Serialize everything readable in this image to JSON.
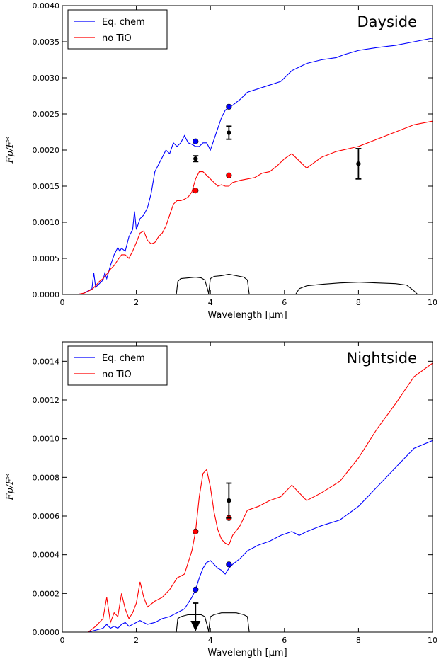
{
  "colors": {
    "eq_chem": "#0000ff",
    "no_tio": "#ff0000",
    "data": "#000000"
  },
  "chart_data": [
    {
      "type": "line",
      "title": "Dayside",
      "xlabel": "Wavelength [μm]",
      "ylabel": "Fp/F*",
      "xlim": [
        0,
        10
      ],
      "ylim": [
        0,
        0.004
      ],
      "xticks": [
        "0",
        "2",
        "4",
        "6",
        "8",
        "10"
      ],
      "xtick_values": [
        0,
        2,
        4,
        6,
        8,
        10
      ],
      "yticks": [
        "0.0000",
        "0.0005",
        "0.0010",
        "0.0015",
        "0.0020",
        "0.0025",
        "0.0030",
        "0.0035",
        "0.0040"
      ],
      "ytick_values": [
        0,
        0.0005,
        0.001,
        0.0015,
        0.002,
        0.0025,
        0.003,
        0.0035,
        0.004
      ],
      "legend_position": "top-left",
      "series": [
        {
          "name": "Eq. chem",
          "color": "#0000ff",
          "x": [
            0.35,
            0.55,
            0.7,
            0.8,
            0.85,
            0.9,
            1.0,
            1.1,
            1.15,
            1.2,
            1.3,
            1.4,
            1.5,
            1.55,
            1.6,
            1.7,
            1.8,
            1.9,
            1.95,
            2.0,
            2.1,
            2.2,
            2.3,
            2.4,
            2.5,
            2.6,
            2.7,
            2.8,
            2.9,
            3.0,
            3.1,
            3.2,
            3.3,
            3.4,
            3.5,
            3.6,
            3.7,
            3.8,
            3.9,
            4.0,
            4.1,
            4.2,
            4.3,
            4.4,
            4.5,
            4.6,
            4.8,
            5.0,
            5.3,
            5.6,
            5.9,
            6.2,
            6.4,
            6.6,
            7.0,
            7.4,
            7.6,
            8.0,
            8.5,
            9.0,
            9.5,
            10.0
          ],
          "y": [
            0.0,
            1e-05,
            5e-05,
            8e-05,
            0.0003,
            0.0001,
            0.00015,
            0.0002,
            0.0003,
            0.00022,
            0.0004,
            0.00055,
            0.00065,
            0.0006,
            0.00064,
            0.0006,
            0.0008,
            0.0009,
            0.00115,
            0.0009,
            0.00105,
            0.0011,
            0.0012,
            0.0014,
            0.0017,
            0.0018,
            0.0019,
            0.002,
            0.00195,
            0.0021,
            0.00205,
            0.0021,
            0.0022,
            0.0021,
            0.00208,
            0.00205,
            0.00205,
            0.0021,
            0.0021,
            0.002,
            0.00215,
            0.0023,
            0.00245,
            0.00255,
            0.0026,
            0.00262,
            0.0027,
            0.0028,
            0.00285,
            0.0029,
            0.00295,
            0.0031,
            0.00315,
            0.0032,
            0.00325,
            0.00328,
            0.00332,
            0.00338,
            0.00342,
            0.00345,
            0.0035,
            0.00355
          ]
        },
        {
          "name": "no TiO",
          "color": "#ff0000",
          "x": [
            0.4,
            0.6,
            0.8,
            0.9,
            1.0,
            1.1,
            1.2,
            1.3,
            1.4,
            1.5,
            1.6,
            1.7,
            1.8,
            1.9,
            2.0,
            2.1,
            2.2,
            2.3,
            2.4,
            2.5,
            2.6,
            2.7,
            2.8,
            2.9,
            3.0,
            3.1,
            3.2,
            3.3,
            3.4,
            3.5,
            3.6,
            3.7,
            3.8,
            3.9,
            4.0,
            4.1,
            4.2,
            4.3,
            4.4,
            4.5,
            4.6,
            4.8,
            5.0,
            5.2,
            5.4,
            5.6,
            5.8,
            6.0,
            6.2,
            6.4,
            6.6,
            7.0,
            7.4,
            8.0,
            8.5,
            9.0,
            9.5,
            10.0
          ],
          "y": [
            0.0,
            2e-05,
            7e-05,
            0.00012,
            0.00018,
            0.00022,
            0.00028,
            0.00035,
            0.0004,
            0.00048,
            0.00055,
            0.00055,
            0.0005,
            0.0006,
            0.00072,
            0.00085,
            0.00088,
            0.00075,
            0.0007,
            0.00072,
            0.0008,
            0.00085,
            0.00095,
            0.0011,
            0.00125,
            0.0013,
            0.0013,
            0.00132,
            0.00135,
            0.00142,
            0.0016,
            0.0017,
            0.0017,
            0.00165,
            0.0016,
            0.00155,
            0.0015,
            0.00152,
            0.0015,
            0.0015,
            0.00155,
            0.00158,
            0.0016,
            0.00162,
            0.00168,
            0.0017,
            0.00178,
            0.00188,
            0.00195,
            0.00185,
            0.00175,
            0.0019,
            0.00198,
            0.00205,
            0.00215,
            0.00225,
            0.00235,
            0.0024
          ]
        },
        {
          "name": "band-3.6",
          "color": "#000000",
          "x": [
            3.08,
            3.12,
            3.2,
            3.4,
            3.6,
            3.75,
            3.85,
            3.92,
            3.96
          ],
          "y": [
            0.0,
            0.00018,
            0.00022,
            0.00023,
            0.00024,
            0.00023,
            0.0002,
            8e-05,
            0.0
          ]
        },
        {
          "name": "band-4.5",
          "color": "#000000",
          "x": [
            3.95,
            4.0,
            4.1,
            4.3,
            4.5,
            4.7,
            4.9,
            5.0,
            5.05
          ],
          "y": [
            0.0,
            0.00022,
            0.00025,
            0.00026,
            0.00028,
            0.00026,
            0.00024,
            0.0002,
            0.0
          ]
        },
        {
          "name": "band-8.0",
          "color": "#000000",
          "x": [
            6.3,
            6.4,
            6.6,
            7.0,
            7.5,
            8.0,
            8.5,
            9.0,
            9.3,
            9.5,
            9.6
          ],
          "y": [
            0.0,
            8e-05,
            0.00012,
            0.00014,
            0.00016,
            0.00017,
            0.00016,
            0.00015,
            0.00013,
            5e-05,
            0.0
          ]
        }
      ],
      "model_points": [
        {
          "series": "Eq. chem",
          "x": 3.6,
          "y": 0.00212,
          "color": "#0000ff"
        },
        {
          "series": "Eq. chem",
          "x": 4.5,
          "y": 0.0026,
          "color": "#0000ff"
        },
        {
          "series": "no TiO",
          "x": 3.6,
          "y": 0.00144,
          "color": "#ff0000"
        },
        {
          "series": "no TiO",
          "x": 4.5,
          "y": 0.00165,
          "color": "#ff0000"
        }
      ],
      "observations": [
        {
          "x": 3.6,
          "y": 0.00188,
          "err": 4e-05
        },
        {
          "x": 4.5,
          "y": 0.00224,
          "err": 9e-05
        },
        {
          "x": 8.0,
          "y": 0.00181,
          "err": 0.00021
        }
      ]
    },
    {
      "type": "line",
      "title": "Nightside",
      "xlabel": "Wavelength [μm]",
      "ylabel": "Fp/F*",
      "xlim": [
        0,
        10
      ],
      "ylim": [
        0,
        0.0015
      ],
      "xticks": [
        "0",
        "2",
        "4",
        "6",
        "8",
        "10"
      ],
      "xtick_values": [
        0,
        2,
        4,
        6,
        8,
        10
      ],
      "yticks": [
        "0.0000",
        "0.0002",
        "0.0004",
        "0.0006",
        "0.0008",
        "0.0010",
        "0.0012",
        "0.0014"
      ],
      "ytick_values": [
        0,
        0.0002,
        0.0004,
        0.0006,
        0.0008,
        0.001,
        0.0012,
        0.0014
      ],
      "legend_position": "top-left",
      "series": [
        {
          "name": "Eq. chem",
          "color": "#0000ff",
          "x": [
            0.7,
            0.9,
            1.1,
            1.2,
            1.3,
            1.4,
            1.5,
            1.6,
            1.7,
            1.8,
            1.9,
            2.0,
            2.1,
            2.2,
            2.3,
            2.5,
            2.7,
            2.9,
            3.1,
            3.3,
            3.5,
            3.6,
            3.7,
            3.8,
            3.9,
            4.0,
            4.1,
            4.2,
            4.3,
            4.4,
            4.5,
            4.6,
            4.8,
            5.0,
            5.3,
            5.6,
            5.9,
            6.2,
            6.4,
            6.6,
            7.0,
            7.5,
            8.0,
            8.5,
            9.0,
            9.5,
            10.0
          ],
          "y": [
            0.0,
            1e-05,
            2e-05,
            4e-05,
            2e-05,
            3e-05,
            2e-05,
            4e-05,
            5e-05,
            3e-05,
            4e-05,
            5e-05,
            6e-05,
            5e-05,
            4e-05,
            5e-05,
            7e-05,
            8e-05,
            0.0001,
            0.00012,
            0.00018,
            0.00022,
            0.00028,
            0.00033,
            0.00036,
            0.00037,
            0.00035,
            0.00033,
            0.00032,
            0.0003,
            0.00033,
            0.00035,
            0.00038,
            0.00042,
            0.00045,
            0.00047,
            0.0005,
            0.00052,
            0.0005,
            0.00052,
            0.00055,
            0.00058,
            0.00065,
            0.00075,
            0.00085,
            0.00095,
            0.00099
          ]
        },
        {
          "name": "no TiO",
          "color": "#ff0000",
          "x": [
            0.7,
            0.9,
            1.1,
            1.2,
            1.3,
            1.4,
            1.5,
            1.6,
            1.7,
            1.8,
            1.9,
            2.0,
            2.1,
            2.2,
            2.3,
            2.5,
            2.7,
            2.9,
            3.1,
            3.3,
            3.5,
            3.6,
            3.7,
            3.8,
            3.9,
            4.0,
            4.1,
            4.2,
            4.3,
            4.4,
            4.5,
            4.6,
            4.8,
            5.0,
            5.3,
            5.6,
            5.9,
            6.2,
            6.4,
            6.6,
            7.0,
            7.5,
            8.0,
            8.5,
            9.0,
            9.5,
            10.0
          ],
          "y": [
            0.0,
            3e-05,
            7e-05,
            0.00018,
            5e-05,
            0.0001,
            8e-05,
            0.0002,
            0.00012,
            7e-05,
            0.0001,
            0.00015,
            0.00026,
            0.00018,
            0.00013,
            0.00016,
            0.00018,
            0.00022,
            0.00028,
            0.0003,
            0.00042,
            0.00052,
            0.0007,
            0.00082,
            0.00084,
            0.00075,
            0.00062,
            0.00053,
            0.00048,
            0.00046,
            0.00045,
            0.0005,
            0.00055,
            0.00063,
            0.00065,
            0.00068,
            0.0007,
            0.00076,
            0.00072,
            0.00068,
            0.00072,
            0.00078,
            0.0009,
            0.00105,
            0.00118,
            0.00132,
            0.00139
          ]
        },
        {
          "name": "band-3.6",
          "color": "#000000",
          "x": [
            3.08,
            3.12,
            3.2,
            3.4,
            3.6,
            3.75,
            3.85,
            3.92,
            3.96
          ],
          "y": [
            0.0,
            7e-05,
            8e-05,
            9e-05,
            9e-05,
            9e-05,
            8e-05,
            3e-05,
            0.0
          ]
        },
        {
          "name": "band-4.5",
          "color": "#000000",
          "x": [
            3.95,
            4.0,
            4.1,
            4.3,
            4.5,
            4.7,
            4.9,
            5.0,
            5.05
          ],
          "y": [
            0.0,
            8e-05,
            9e-05,
            0.0001,
            0.0001,
            0.0001,
            9e-05,
            8e-05,
            0.0
          ]
        }
      ],
      "model_points": [
        {
          "series": "Eq. chem",
          "x": 3.6,
          "y": 0.00022,
          "color": "#0000ff"
        },
        {
          "series": "Eq. chem",
          "x": 4.5,
          "y": 0.00035,
          "color": "#0000ff"
        },
        {
          "series": "no TiO",
          "x": 3.6,
          "y": 0.00052,
          "color": "#ff0000"
        },
        {
          "series": "no TiO",
          "x": 4.5,
          "y": 0.00059,
          "color": "#ff0000"
        }
      ],
      "observations": [
        {
          "x": 4.5,
          "y": 0.00068,
          "err": 9e-05
        }
      ],
      "upper_limits": [
        {
          "x": 3.6,
          "y": 0.00015
        }
      ]
    }
  ]
}
